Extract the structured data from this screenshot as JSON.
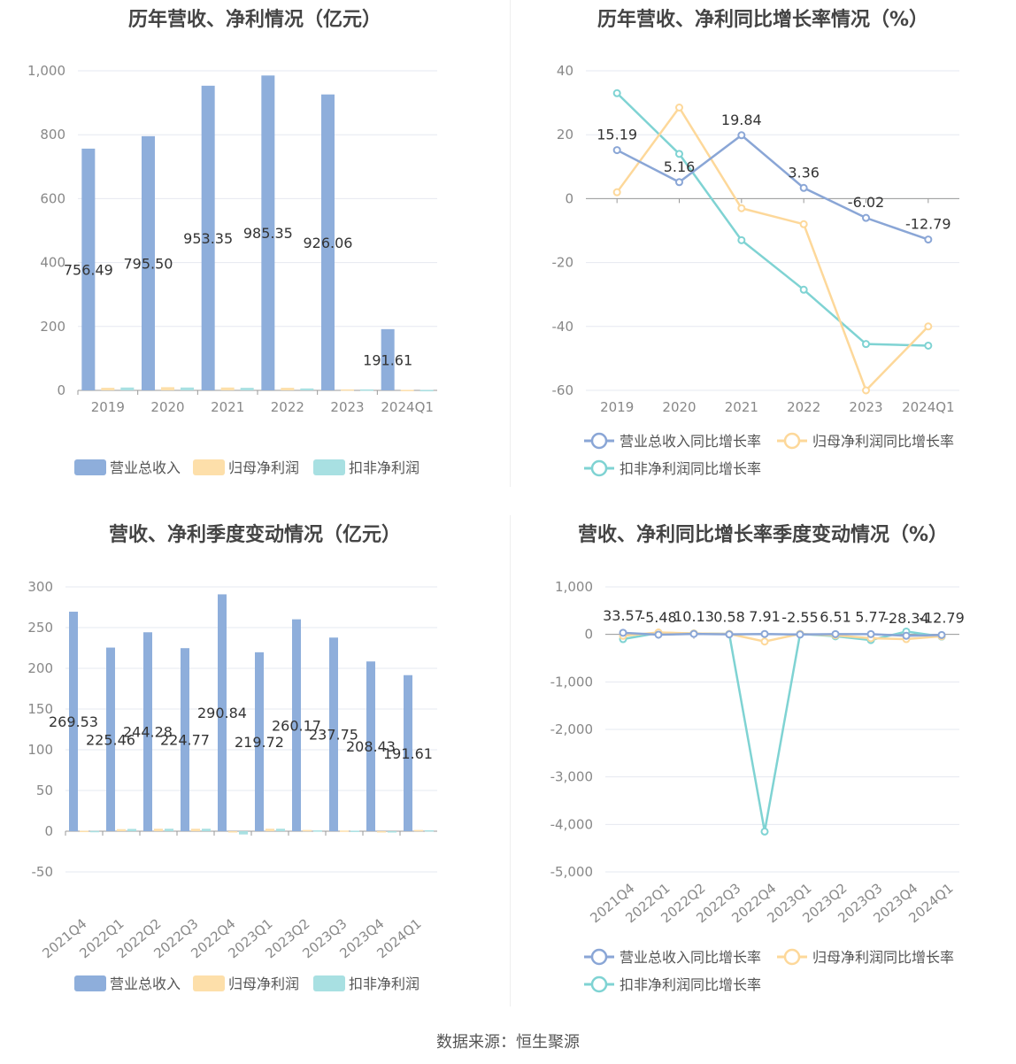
{
  "source": "数据来源：恒生聚源",
  "legend_bar": [
    "营业总收入",
    "归母净利润",
    "扣非净利润"
  ],
  "legend_line": [
    "营业总收入同比增长率",
    "归母净利润同比增长率",
    "扣非净利润同比增长率"
  ],
  "colors": {
    "revenue": "#8eaedb",
    "net": "#fddfaa",
    "deducted": "#a8e0e2",
    "revenue_line": "#8aa6d6",
    "net_line": "#fdd89a",
    "deducted_line": "#7fd3d3"
  },
  "chart_data": [
    {
      "id": "annual-bar",
      "type": "bar",
      "title": "历年营收、净利情况（亿元）",
      "categories": [
        "2019",
        "2020",
        "2021",
        "2022",
        "2023",
        "2024Q1"
      ],
      "series": [
        {
          "name": "营业总收入",
          "values": [
            756.49,
            795.5,
            953.35,
            985.35,
            926.06,
            191.61
          ]
        },
        {
          "name": "归母净利润",
          "values": [
            8,
            10,
            9,
            8,
            3,
            1.5
          ]
        },
        {
          "name": "扣非净利润",
          "values": [
            9,
            9,
            8,
            6,
            3,
            1.2
          ]
        }
      ],
      "data_labels": [
        "756.49",
        "795.50",
        "953.35",
        "985.35",
        "926.06",
        "191.61"
      ],
      "yticks": [
        "0",
        "200",
        "400",
        "600",
        "800",
        "1,000"
      ],
      "ylim": [
        0,
        1000
      ]
    },
    {
      "id": "annual-line",
      "type": "line",
      "title": "历年营收、净利同比增长率情况（%）",
      "categories": [
        "2019",
        "2020",
        "2021",
        "2022",
        "2023",
        "2024Q1"
      ],
      "series": [
        {
          "name": "营业总收入同比增长率",
          "values": [
            15.19,
            5.16,
            19.84,
            3.36,
            -6.02,
            -12.79
          ]
        },
        {
          "name": "归母净利润同比增长率",
          "values": [
            2,
            28.5,
            -3,
            -8,
            -60,
            -40
          ]
        },
        {
          "name": "扣非净利润同比增长率",
          "values": [
            33,
            14,
            -13,
            -28.5,
            -45.5,
            -46
          ]
        }
      ],
      "data_labels": [
        "15.19",
        "5.16",
        "19.84",
        "3.36",
        "-6.02",
        "-12.79"
      ],
      "yticks": [
        "-60",
        "-40",
        "-20",
        "0",
        "20",
        "40"
      ],
      "ylim": [
        -60,
        40
      ]
    },
    {
      "id": "quarter-bar",
      "type": "bar",
      "title": "营收、净利季度变动情况（亿元）",
      "categories": [
        "2021Q4",
        "2022Q1",
        "2022Q2",
        "2022Q3",
        "2022Q4",
        "2023Q1",
        "2023Q2",
        "2023Q3",
        "2023Q4",
        "2024Q1"
      ],
      "series": [
        {
          "name": "营业总收入",
          "values": [
            269.53,
            225.46,
            244.28,
            224.77,
            290.84,
            219.72,
            260.17,
            237.75,
            208.43,
            191.61
          ]
        },
        {
          "name": "归母净利润",
          "values": [
            0.5,
            2.5,
            3,
            3,
            -1,
            3,
            1.5,
            0.8,
            -0.5,
            1.5
          ]
        },
        {
          "name": "扣非净利润",
          "values": [
            0.3,
            2.8,
            3,
            3,
            -4,
            3,
            1,
            0.6,
            -1,
            1.2
          ]
        }
      ],
      "data_labels": [
        "269.53",
        "225.46",
        "244.28",
        "224.77",
        "290.84",
        "219.72",
        "260.17",
        "237.75",
        "208.43",
        "191.61"
      ],
      "yticks": [
        "-50",
        "0",
        "50",
        "100",
        "150",
        "200",
        "250",
        "300"
      ],
      "ylim": [
        -50,
        300
      ]
    },
    {
      "id": "quarter-line",
      "type": "line",
      "title": "营收、净利同比增长率季度变动情况（%）",
      "categories": [
        "2021Q4",
        "2022Q1",
        "2022Q2",
        "2022Q3",
        "2022Q4",
        "2023Q1",
        "2023Q2",
        "2023Q3",
        "2023Q4",
        "2024Q1"
      ],
      "series": [
        {
          "name": "营业总收入同比增长率",
          "values": [
            33.57,
            -5.48,
            10.13,
            0.58,
            7.91,
            -2.55,
            6.51,
            5.77,
            -28.34,
            -12.79
          ]
        },
        {
          "name": "归母净利润同比增长率",
          "values": [
            -30,
            40,
            20,
            10,
            -150,
            10,
            -20,
            -80,
            -100,
            -40
          ]
        },
        {
          "name": "扣非净利润同比增长率",
          "values": [
            -100,
            30,
            20,
            10,
            -4150,
            10,
            -40,
            -120,
            60,
            -46
          ]
        }
      ],
      "data_labels": [
        "33.57",
        "-5.48",
        "10.13",
        "0.58",
        "7.91",
        "-2.55",
        "6.51",
        "5.77",
        "-28.34",
        "-12.79"
      ],
      "yticks": [
        "-5,000",
        "-4,000",
        "-3,000",
        "-2,000",
        "-1,000",
        "0",
        "1,000"
      ],
      "ylim": [
        -5000,
        1000
      ]
    }
  ]
}
